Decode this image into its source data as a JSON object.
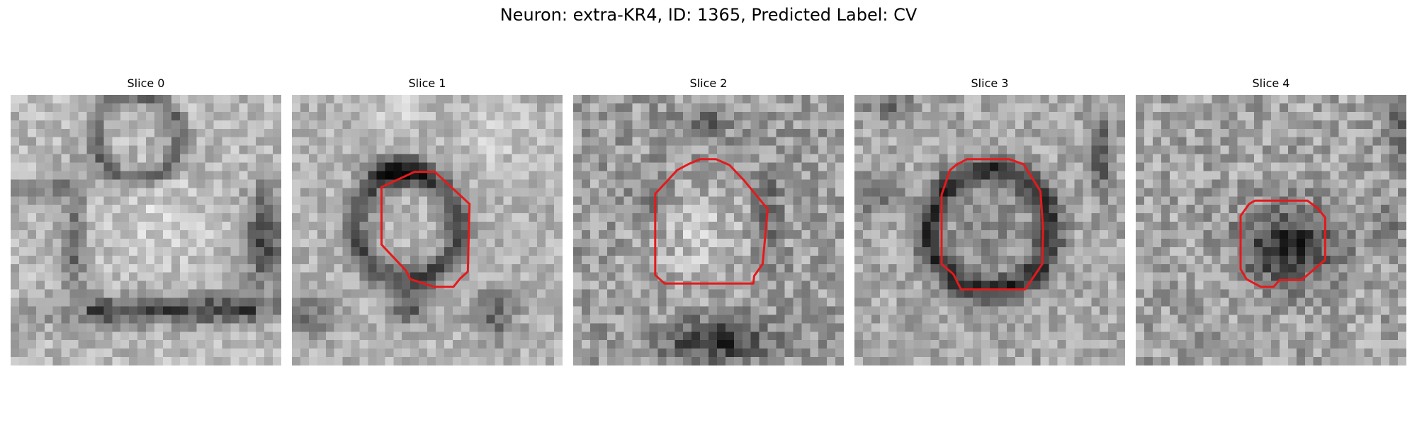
{
  "figure": {
    "title": "Neuron: extra-KR4, ID: 1365, Predicted Label: CV"
  },
  "contour_color": "#e41a1c",
  "panels": [
    {
      "title": "Slice 0",
      "has_contour": false
    },
    {
      "title": "Slice 1",
      "has_contour": true
    },
    {
      "title": "Slice 2",
      "has_contour": true
    },
    {
      "title": "Slice 3",
      "has_contour": true
    },
    {
      "title": "Slice 4",
      "has_contour": true
    }
  ]
}
